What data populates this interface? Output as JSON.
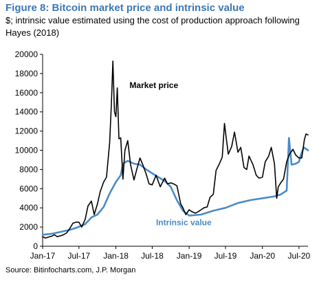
{
  "chart_data": {
    "type": "line",
    "title": "Figure 8: Bitcoin market price and intrinsic value",
    "subtitle": "$; intrinsic value estimated using the cost of production approach following Hayes (2018)",
    "source": "Source: Bitinfocharts.com, J.P. Morgan",
    "xlabel": "",
    "ylabel": "",
    "ylim": [
      0,
      20000
    ],
    "yticks": [
      0,
      2000,
      4000,
      6000,
      8000,
      10000,
      12000,
      14000,
      16000,
      18000,
      20000
    ],
    "ytick_labels": [
      "0",
      "2000",
      "4000",
      "6000",
      "8000",
      "10000",
      "12000",
      "14000",
      "16000",
      "18000",
      "20000"
    ],
    "x_range": [
      "2017-01-01",
      "2020-08-15"
    ],
    "xticks": [
      {
        "label": "Jan-17",
        "date": "2017-01-01"
      },
      {
        "label": "Jul-17",
        "date": "2017-07-01"
      },
      {
        "label": "Jan-18",
        "date": "2018-01-01"
      },
      {
        "label": "Jul-18",
        "date": "2018-07-01"
      },
      {
        "label": "Jan-19",
        "date": "2019-01-01"
      },
      {
        "label": "Jul-19",
        "date": "2019-07-01"
      },
      {
        "label": "Jan-20",
        "date": "2020-01-01"
      },
      {
        "label": "Jul-20",
        "date": "2020-07-01"
      }
    ],
    "grid": false,
    "legend": "none",
    "annotations": [
      {
        "text": "Market price",
        "series": "market"
      },
      {
        "text": "Intrinsic value",
        "series": "intrinsic"
      }
    ],
    "series": [
      {
        "key": "market",
        "color": "#000000",
        "points": [
          [
            "2017-01-01",
            1000
          ],
          [
            "2017-01-15",
            850
          ],
          [
            "2017-02-01",
            970
          ],
          [
            "2017-02-15",
            1050
          ],
          [
            "2017-03-01",
            1200
          ],
          [
            "2017-03-15",
            1000
          ],
          [
            "2017-04-01",
            1100
          ],
          [
            "2017-04-15",
            1200
          ],
          [
            "2017-05-01",
            1400
          ],
          [
            "2017-05-15",
            1800
          ],
          [
            "2017-06-01",
            2400
          ],
          [
            "2017-06-15",
            2500
          ],
          [
            "2017-07-01",
            2500
          ],
          [
            "2017-07-15",
            2000
          ],
          [
            "2017-08-01",
            2800
          ],
          [
            "2017-08-15",
            4200
          ],
          [
            "2017-09-01",
            4700
          ],
          [
            "2017-09-15",
            3300
          ],
          [
            "2017-10-01",
            4400
          ],
          [
            "2017-10-15",
            5700
          ],
          [
            "2017-11-01",
            6700
          ],
          [
            "2017-11-15",
            7200
          ],
          [
            "2017-12-01",
            10800
          ],
          [
            "2017-12-10",
            15000
          ],
          [
            "2017-12-17",
            19300
          ],
          [
            "2017-12-25",
            14000
          ],
          [
            "2018-01-01",
            13500
          ],
          [
            "2018-01-08",
            16500
          ],
          [
            "2018-01-16",
            11200
          ],
          [
            "2018-01-25",
            11300
          ],
          [
            "2018-02-05",
            7000
          ],
          [
            "2018-02-15",
            10000
          ],
          [
            "2018-03-01",
            11000
          ],
          [
            "2018-03-15",
            8500
          ],
          [
            "2018-04-01",
            6900
          ],
          [
            "2018-04-15",
            8000
          ],
          [
            "2018-05-01",
            9200
          ],
          [
            "2018-05-15",
            8500
          ],
          [
            "2018-06-01",
            7500
          ],
          [
            "2018-06-15",
            6500
          ],
          [
            "2018-07-01",
            6400
          ],
          [
            "2018-07-20",
            7400
          ],
          [
            "2018-08-10",
            6200
          ],
          [
            "2018-09-01",
            7100
          ],
          [
            "2018-09-15",
            6500
          ],
          [
            "2018-10-01",
            6600
          ],
          [
            "2018-10-15",
            6500
          ],
          [
            "2018-11-01",
            6300
          ],
          [
            "2018-11-20",
            4400
          ],
          [
            "2018-12-01",
            4000
          ],
          [
            "2018-12-15",
            3300
          ],
          [
            "2019-01-01",
            3800
          ],
          [
            "2019-01-15",
            3600
          ],
          [
            "2019-02-01",
            3450
          ],
          [
            "2019-02-15",
            3600
          ],
          [
            "2019-03-01",
            3800
          ],
          [
            "2019-03-15",
            4000
          ],
          [
            "2019-04-01",
            4100
          ],
          [
            "2019-04-15",
            5100
          ],
          [
            "2019-05-01",
            5400
          ],
          [
            "2019-05-15",
            7900
          ],
          [
            "2019-06-01",
            8600
          ],
          [
            "2019-06-15",
            9300
          ],
          [
            "2019-06-26",
            12800
          ],
          [
            "2019-07-05",
            11200
          ],
          [
            "2019-07-15",
            9600
          ],
          [
            "2019-08-01",
            10400
          ],
          [
            "2019-08-15",
            11900
          ],
          [
            "2019-09-01",
            9800
          ],
          [
            "2019-09-15",
            10300
          ],
          [
            "2019-10-01",
            8200
          ],
          [
            "2019-10-15",
            8000
          ],
          [
            "2019-10-26",
            9400
          ],
          [
            "2019-11-15",
            8500
          ],
          [
            "2019-12-01",
            7400
          ],
          [
            "2019-12-15",
            7100
          ],
          [
            "2020-01-01",
            7200
          ],
          [
            "2020-01-15",
            8800
          ],
          [
            "2020-02-01",
            9400
          ],
          [
            "2020-02-14",
            10300
          ],
          [
            "2020-03-01",
            8600
          ],
          [
            "2020-03-12",
            5000
          ],
          [
            "2020-03-20",
            6200
          ],
          [
            "2020-04-01",
            6600
          ],
          [
            "2020-04-15",
            7000
          ],
          [
            "2020-05-01",
            8800
          ],
          [
            "2020-05-15",
            9600
          ],
          [
            "2020-06-01",
            10100
          ],
          [
            "2020-06-15",
            9500
          ],
          [
            "2020-07-01",
            9200
          ],
          [
            "2020-07-15",
            9200
          ],
          [
            "2020-07-28",
            11100
          ],
          [
            "2020-08-05",
            11700
          ],
          [
            "2020-08-15",
            11600
          ]
        ]
      },
      {
        "key": "intrinsic",
        "color": "#4a8bc6",
        "points": [
          [
            "2017-01-01",
            1200
          ],
          [
            "2017-02-15",
            1300
          ],
          [
            "2017-04-01",
            1500
          ],
          [
            "2017-05-15",
            1700
          ],
          [
            "2017-06-15",
            1900
          ],
          [
            "2017-08-01",
            2300
          ],
          [
            "2017-09-01",
            3000
          ],
          [
            "2017-10-01",
            3300
          ],
          [
            "2017-11-01",
            4100
          ],
          [
            "2017-12-01",
            5500
          ],
          [
            "2018-01-01",
            6700
          ],
          [
            "2018-01-25",
            7400
          ],
          [
            "2018-02-05",
            8600
          ],
          [
            "2018-03-01",
            8900
          ],
          [
            "2018-04-01",
            8600
          ],
          [
            "2018-05-01",
            8500
          ],
          [
            "2018-06-01",
            8000
          ],
          [
            "2018-07-01",
            7600
          ],
          [
            "2018-08-01",
            7200
          ],
          [
            "2018-09-01",
            6800
          ],
          [
            "2018-10-01",
            6200
          ],
          [
            "2018-11-01",
            4800
          ],
          [
            "2018-12-01",
            3700
          ],
          [
            "2019-01-01",
            3200
          ],
          [
            "2019-03-01",
            3300
          ],
          [
            "2019-05-01",
            3700
          ],
          [
            "2019-07-01",
            4000
          ],
          [
            "2019-09-01",
            4500
          ],
          [
            "2019-11-01",
            4800
          ],
          [
            "2020-01-01",
            5000
          ],
          [
            "2020-03-01",
            5200
          ],
          [
            "2020-04-01",
            5400
          ],
          [
            "2020-05-01",
            5800
          ],
          [
            "2020-05-12",
            11300
          ],
          [
            "2020-05-25",
            8500
          ],
          [
            "2020-06-15",
            8600
          ],
          [
            "2020-07-01",
            8800
          ],
          [
            "2020-07-10",
            9500
          ],
          [
            "2020-07-25",
            10300
          ],
          [
            "2020-08-15",
            10000
          ]
        ]
      }
    ]
  }
}
